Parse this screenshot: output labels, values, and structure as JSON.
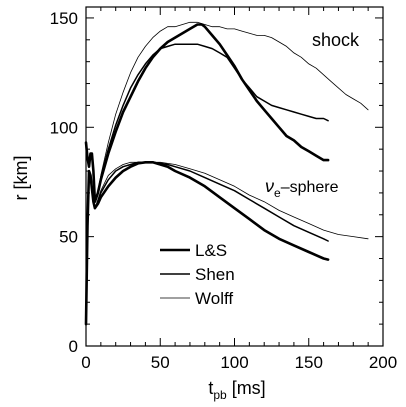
{
  "chart_data": {
    "type": "line",
    "xlabel": {
      "main": "t",
      "sub": "pb",
      "rest": " [ms]"
    },
    "ylabel": "r [km]",
    "xlim": [
      0,
      200
    ],
    "ylim": [
      0,
      155
    ],
    "xticks": [
      0,
      50,
      100,
      150,
      200
    ],
    "yticks": [
      0,
      50,
      100,
      150
    ],
    "grid": false,
    "annotations": {
      "shock": "shock",
      "nue_greek": "ν",
      "nue_sub": "e",
      "nue_rest": "–sphere"
    },
    "legend": {
      "placement": "bottom-left",
      "entries": [
        {
          "label": "L&S",
          "width": 2.6
        },
        {
          "label": "Shen",
          "width": 1.5
        },
        {
          "label": "Wolff",
          "width": 0.8
        }
      ]
    },
    "series": [
      {
        "label": "L&S",
        "group": "shock",
        "width": 2.6,
        "points": [
          [
            0,
            93
          ],
          [
            1,
            86
          ],
          [
            2,
            82
          ],
          [
            3,
            88
          ],
          [
            4,
            88
          ],
          [
            5,
            80
          ],
          [
            6,
            66
          ],
          [
            8,
            70
          ],
          [
            10,
            76
          ],
          [
            15,
            88
          ],
          [
            20,
            98
          ],
          [
            25,
            107
          ],
          [
            30,
            114
          ],
          [
            35,
            121
          ],
          [
            40,
            127
          ],
          [
            45,
            132
          ],
          [
            50,
            136
          ],
          [
            55,
            139
          ],
          [
            60,
            141
          ],
          [
            65,
            143
          ],
          [
            70,
            145
          ],
          [
            75,
            147
          ],
          [
            78,
            147
          ],
          [
            80,
            146
          ],
          [
            85,
            142
          ],
          [
            90,
            138
          ],
          [
            95,
            133
          ],
          [
            100,
            128
          ],
          [
            105,
            122
          ],
          [
            110,
            117
          ],
          [
            115,
            112
          ],
          [
            120,
            108
          ],
          [
            125,
            104
          ],
          [
            130,
            100
          ],
          [
            135,
            96
          ],
          [
            140,
            94
          ],
          [
            145,
            91
          ],
          [
            150,
            89
          ],
          [
            155,
            87
          ],
          [
            160,
            85
          ],
          [
            163,
            85
          ]
        ]
      },
      {
        "label": "Shen",
        "group": "shock",
        "width": 1.5,
        "points": [
          [
            0,
            93
          ],
          [
            1,
            86
          ],
          [
            2,
            82
          ],
          [
            3,
            88
          ],
          [
            4,
            88
          ],
          [
            5,
            80
          ],
          [
            6,
            66
          ],
          [
            8,
            70
          ],
          [
            10,
            77
          ],
          [
            15,
            90
          ],
          [
            20,
            101
          ],
          [
            25,
            110
          ],
          [
            30,
            118
          ],
          [
            35,
            124
          ],
          [
            40,
            129
          ],
          [
            45,
            133
          ],
          [
            50,
            136
          ],
          [
            55,
            137
          ],
          [
            60,
            138
          ],
          [
            65,
            138
          ],
          [
            70,
            138
          ],
          [
            75,
            138
          ],
          [
            80,
            137
          ],
          [
            85,
            136
          ],
          [
            90,
            134
          ],
          [
            95,
            132
          ],
          [
            100,
            127
          ],
          [
            105,
            122
          ],
          [
            110,
            118
          ],
          [
            115,
            114
          ],
          [
            120,
            112
          ],
          [
            125,
            110
          ],
          [
            130,
            109
          ],
          [
            135,
            108
          ],
          [
            140,
            107
          ],
          [
            145,
            106
          ],
          [
            150,
            105
          ],
          [
            155,
            104
          ],
          [
            160,
            104
          ],
          [
            163,
            103
          ]
        ]
      },
      {
        "label": "Wolff",
        "group": "shock",
        "width": 0.8,
        "points": [
          [
            0,
            93
          ],
          [
            1,
            86
          ],
          [
            2,
            82
          ],
          [
            3,
            88
          ],
          [
            4,
            88
          ],
          [
            5,
            80
          ],
          [
            6,
            66
          ],
          [
            8,
            70
          ],
          [
            10,
            78
          ],
          [
            15,
            93
          ],
          [
            20,
            106
          ],
          [
            25,
            116
          ],
          [
            30,
            125
          ],
          [
            35,
            132
          ],
          [
            40,
            137
          ],
          [
            45,
            141
          ],
          [
            50,
            144
          ],
          [
            55,
            146
          ],
          [
            60,
            146
          ],
          [
            65,
            147
          ],
          [
            70,
            148
          ],
          [
            75,
            148
          ],
          [
            80,
            147
          ],
          [
            85,
            146
          ],
          [
            90,
            146
          ],
          [
            95,
            145
          ],
          [
            100,
            145
          ],
          [
            105,
            144
          ],
          [
            110,
            143
          ],
          [
            115,
            142
          ],
          [
            120,
            142
          ],
          [
            125,
            141
          ],
          [
            130,
            139
          ],
          [
            135,
            137
          ],
          [
            140,
            134
          ],
          [
            145,
            132
          ],
          [
            150,
            129
          ],
          [
            155,
            127
          ],
          [
            160,
            124
          ],
          [
            165,
            121
          ],
          [
            170,
            118
          ],
          [
            175,
            115
          ],
          [
            180,
            113
          ],
          [
            185,
            111
          ],
          [
            190,
            108
          ]
        ]
      },
      {
        "label": "L&S",
        "group": "nue-sphere",
        "width": 2.6,
        "points": [
          [
            0,
            10
          ],
          [
            1,
            55
          ],
          [
            2,
            80
          ],
          [
            3,
            78
          ],
          [
            4,
            72
          ],
          [
            5,
            66
          ],
          [
            6,
            63
          ],
          [
            8,
            65
          ],
          [
            10,
            68
          ],
          [
            15,
            73
          ],
          [
            20,
            77
          ],
          [
            25,
            80
          ],
          [
            30,
            82
          ],
          [
            35,
            83.5
          ],
          [
            40,
            84
          ],
          [
            45,
            84
          ],
          [
            50,
            83
          ],
          [
            55,
            82
          ],
          [
            60,
            80
          ],
          [
            70,
            77
          ],
          [
            80,
            73
          ],
          [
            90,
            68
          ],
          [
            100,
            63
          ],
          [
            110,
            58
          ],
          [
            120,
            53
          ],
          [
            130,
            49
          ],
          [
            140,
            46
          ],
          [
            150,
            43
          ],
          [
            160,
            40
          ],
          [
            163,
            39.5
          ]
        ]
      },
      {
        "label": "Shen",
        "group": "nue-sphere",
        "width": 1.5,
        "points": [
          [
            0,
            10
          ],
          [
            1,
            55
          ],
          [
            2,
            80
          ],
          [
            3,
            78
          ],
          [
            4,
            72
          ],
          [
            5,
            66
          ],
          [
            6,
            63
          ],
          [
            8,
            66
          ],
          [
            10,
            70
          ],
          [
            15,
            76
          ],
          [
            20,
            80
          ],
          [
            25,
            82
          ],
          [
            30,
            83
          ],
          [
            35,
            84
          ],
          [
            40,
            84
          ],
          [
            45,
            84
          ],
          [
            50,
            83.5
          ],
          [
            55,
            83
          ],
          [
            60,
            82
          ],
          [
            70,
            80
          ],
          [
            80,
            77
          ],
          [
            90,
            74
          ],
          [
            100,
            71
          ],
          [
            110,
            67
          ],
          [
            120,
            63
          ],
          [
            130,
            59
          ],
          [
            140,
            55
          ],
          [
            150,
            52
          ],
          [
            160,
            49
          ],
          [
            163,
            48
          ]
        ]
      },
      {
        "label": "Wolff",
        "group": "nue-sphere",
        "width": 0.8,
        "points": [
          [
            0,
            10
          ],
          [
            1,
            55
          ],
          [
            2,
            80
          ],
          [
            3,
            78
          ],
          [
            4,
            72
          ],
          [
            5,
            66
          ],
          [
            6,
            63
          ],
          [
            8,
            67
          ],
          [
            10,
            71
          ],
          [
            15,
            78
          ],
          [
            20,
            81
          ],
          [
            25,
            83
          ],
          [
            30,
            84
          ],
          [
            35,
            84
          ],
          [
            40,
            84
          ],
          [
            45,
            84
          ],
          [
            50,
            84
          ],
          [
            55,
            83.5
          ],
          [
            60,
            83
          ],
          [
            70,
            81
          ],
          [
            80,
            79
          ],
          [
            90,
            76
          ],
          [
            100,
            73
          ],
          [
            110,
            69
          ],
          [
            120,
            66
          ],
          [
            130,
            62
          ],
          [
            140,
            59
          ],
          [
            150,
            56
          ],
          [
            160,
            53
          ],
          [
            170,
            51
          ],
          [
            180,
            50
          ],
          [
            190,
            49
          ]
        ]
      }
    ]
  }
}
